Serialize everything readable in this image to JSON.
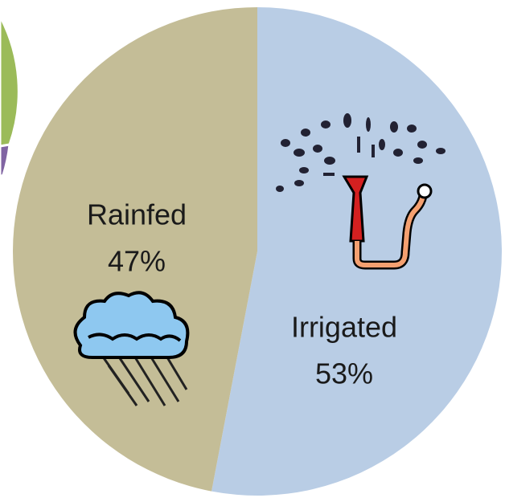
{
  "chart_data": {
    "type": "pie",
    "categories": [
      "Irrigated",
      "Rainfed"
    ],
    "values": [
      53,
      47
    ],
    "value_labels": [
      "53%",
      "47%"
    ],
    "colors": [
      "#b9cde5",
      "#c4bd97"
    ]
  }
}
